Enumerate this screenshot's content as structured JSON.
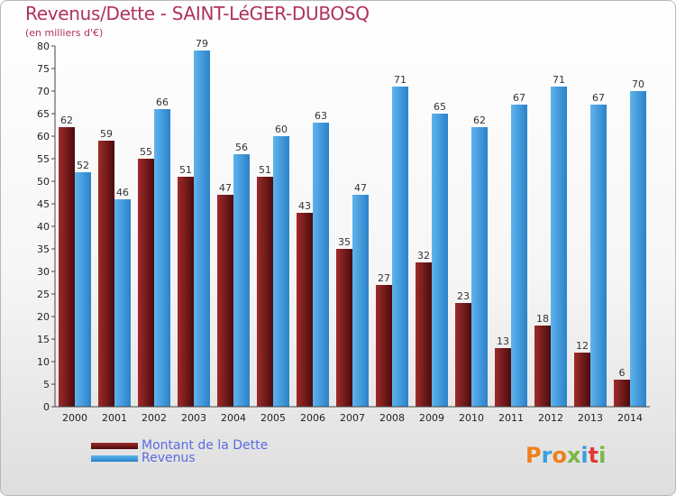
{
  "chart_data": {
    "type": "bar",
    "title": "Revenus/Dette - SAINT-LéGER-DUBOSQ",
    "subtitle": "(en milliers d'€)",
    "categories": [
      "2000",
      "2001",
      "2002",
      "2003",
      "2004",
      "2005",
      "2006",
      "2007",
      "2008",
      "2009",
      "2010",
      "2011",
      "2012",
      "2013",
      "2014"
    ],
    "series": [
      {
        "name": "Montant de la Dette",
        "color": "#7b1c1c",
        "values": [
          62,
          59,
          55,
          51,
          47,
          51,
          43,
          35,
          27,
          32,
          23,
          13,
          18,
          12,
          6
        ]
      },
      {
        "name": "Revenus",
        "color": "#3a9ae0",
        "values": [
          52,
          46,
          66,
          79,
          56,
          60,
          63,
          47,
          71,
          65,
          62,
          67,
          71,
          67,
          70
        ]
      }
    ],
    "ylim": [
      0,
      80
    ],
    "yticks": [
      0,
      5,
      10,
      15,
      20,
      25,
      30,
      35,
      40,
      45,
      50,
      55,
      60,
      65,
      70,
      75,
      80
    ],
    "legend_position": "bottom-left",
    "grid": false
  },
  "logo": {
    "text": "Proxiti",
    "colors": [
      "#f07f1b",
      "#3aa0e0",
      "#f07f1b",
      "#7ab648",
      "#3aa0e0",
      "#e03a3a",
      "#7ab648"
    ]
  }
}
